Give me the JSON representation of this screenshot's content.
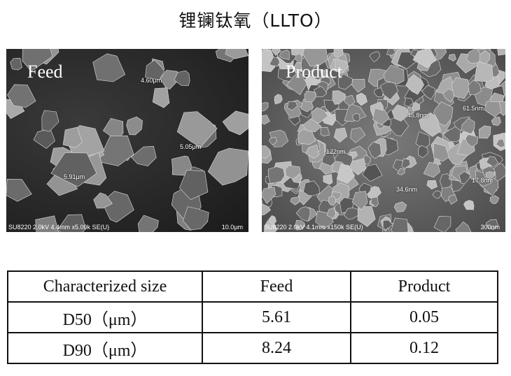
{
  "title": "锂镧钛氧（LLTO）",
  "images": {
    "feed": {
      "label": "Feed",
      "info": "SU8220 2.0kV 4.4mm x5.00k SE(U)",
      "scale": "10.0μm",
      "measurements": [
        "4.60μm",
        "5.05μm",
        "5.91μm"
      ]
    },
    "product": {
      "label": "Product",
      "info": "SU8220 2.0kV 4.1mm x150k SE(U)",
      "scale": "300nm",
      "measurements": [
        "45.8nm",
        "61.5nm",
        "122nm",
        "34.6nm",
        "17.8nm"
      ]
    }
  },
  "table": {
    "headers": [
      "Characterized size",
      "Feed",
      "Product"
    ],
    "rows": [
      [
        "D50（μm）",
        "5.61",
        "0.05"
      ],
      [
        "D90（μm）",
        "8.24",
        "0.12"
      ]
    ]
  }
}
